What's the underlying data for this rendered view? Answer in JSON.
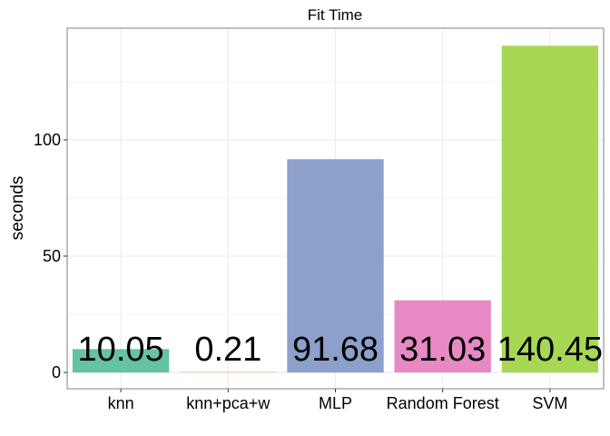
{
  "chart_data": {
    "type": "bar",
    "title": "Fit Time",
    "xlabel": "",
    "ylabel": "seconds",
    "categories": [
      "knn",
      "knn+pca+w",
      "MLP",
      "Random Forest",
      "SVM"
    ],
    "values": [
      10.05,
      0.21,
      91.68,
      31.03,
      140.45
    ],
    "data_labels": [
      "10.05",
      "0.21",
      "91.68",
      "31.03",
      "140.45"
    ],
    "yticks": [
      0,
      50,
      100
    ],
    "ylim": [
      -7,
      148
    ],
    "grid": true,
    "legend": "none",
    "colors": [
      "#66c2a5",
      "#fc8d62",
      "#8da0cb",
      "#e78ac3",
      "#a6d854"
    ],
    "panel_border_color": "#808080",
    "grid_color": "#ebebeb"
  }
}
